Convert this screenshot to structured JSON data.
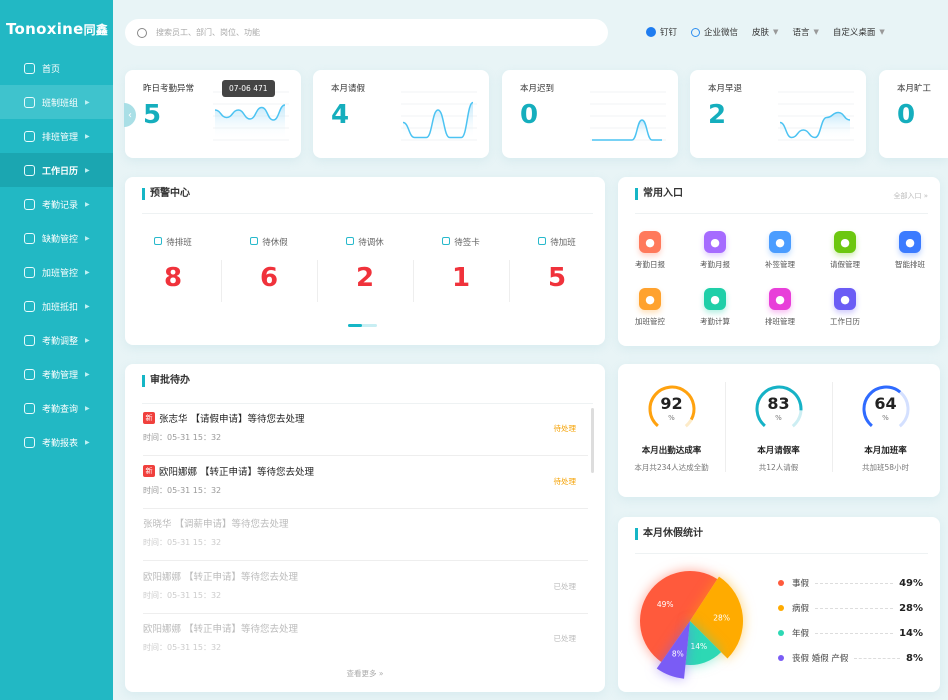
{
  "brand": {
    "name": "Tonoxine",
    "cn": "同鑫"
  },
  "sidebar": {
    "items": [
      {
        "label": "首页",
        "icon": "home-icon",
        "arrow": false
      },
      {
        "label": "班制班组",
        "icon": "org-icon",
        "arrow": true
      },
      {
        "label": "排班管理",
        "icon": "schedule-icon",
        "arrow": true
      },
      {
        "label": "工作日历",
        "icon": "calendar-icon",
        "arrow": true
      },
      {
        "label": "考勤记录",
        "icon": "record-icon",
        "arrow": true
      },
      {
        "label": "缺勤管控",
        "icon": "absence-icon",
        "arrow": true
      },
      {
        "label": "加班管控",
        "icon": "overtime-icon",
        "arrow": true
      },
      {
        "label": "加班抵扣",
        "icon": "deduct-icon",
        "arrow": true
      },
      {
        "label": "考勤调整",
        "icon": "adjust-icon",
        "arrow": true
      },
      {
        "label": "考勤管理",
        "icon": "user-icon",
        "arrow": true
      },
      {
        "label": "考勤查询",
        "icon": "query-icon",
        "arrow": true
      },
      {
        "label": "考勤报表",
        "icon": "report-icon",
        "arrow": true
      }
    ],
    "active": "工作日历",
    "hover": "班制班组"
  },
  "search": {
    "placeholder": "搜索员工、部门、岗位、功能"
  },
  "toplinks": {
    "dingtalk": "钉钉",
    "wecom": "企业微信",
    "skin": "皮肤",
    "language": "语言",
    "custom": "自定义桌面"
  },
  "stats": [
    {
      "label": "昨日考勤异常",
      "value": "5",
      "spark": [
        0.6,
        0.45,
        0.6,
        0.42,
        0.65,
        0.4,
        0.7
      ]
    },
    {
      "label": "本月请假",
      "value": "4",
      "spark": [
        0.35,
        0.05,
        0.05,
        0.6,
        0.05,
        0.05,
        0.75
      ]
    },
    {
      "label": "本月迟到",
      "value": "0",
      "spark": [
        0,
        0,
        0,
        0,
        0,
        0.4,
        0,
        0
      ]
    },
    {
      "label": "本月早退",
      "value": "2",
      "spark": [
        0.35,
        0.05,
        0.2,
        0.05,
        0.45,
        0.55,
        0.4
      ]
    },
    {
      "label": "本月旷工",
      "value": "0",
      "spark": []
    }
  ],
  "tooltip": {
    "date": "07-06",
    "value": "471"
  },
  "warning": {
    "title": "预警中心",
    "items": [
      {
        "label": "待排班",
        "value": "8"
      },
      {
        "label": "待休假",
        "value": "6"
      },
      {
        "label": "待调休",
        "value": "2"
      },
      {
        "label": "待签卡",
        "value": "1"
      },
      {
        "label": "待加班",
        "value": "5"
      }
    ]
  },
  "entries": {
    "title": "常用入口",
    "all": "全部入口 »",
    "items": [
      {
        "label": "考勤日报",
        "color": "#ff7a5c"
      },
      {
        "label": "考勤月报",
        "color": "#a66bff"
      },
      {
        "label": "补签管理",
        "color": "#4b9dff"
      },
      {
        "label": "请假管理",
        "color": "#6cc70f"
      },
      {
        "label": "智能排班",
        "color": "#3b7bff"
      },
      {
        "label": "加班管控",
        "color": "#ffa22e"
      },
      {
        "label": "考勤计算",
        "color": "#1fcfa8"
      },
      {
        "label": "排班管理",
        "color": "#e83fd9"
      },
      {
        "label": "工作日历",
        "color": "#6b5cf5"
      }
    ]
  },
  "approval": {
    "title": "审批待办",
    "more": "查看更多 »",
    "new_badge": "新",
    "items": [
      {
        "text": "张志华 【请假申请】等待您去处理",
        "time": "时间：05-31 15：32",
        "status": "待处理",
        "new": true
      },
      {
        "text": "欧阳娜娜 【转正申请】等待您去处理",
        "time": "时间：05-31 15：32",
        "status": "待处理",
        "new": true
      },
      {
        "text": "张晓华 【调薪申请】等待您去处理",
        "time": "时间：05-31 15：32",
        "status": "",
        "new": false
      },
      {
        "text": "欧阳娜娜 【转正申请】等待您去处理",
        "time": "时间：05-31 15：32",
        "status": "已处理",
        "new": false
      },
      {
        "text": "欧阳娜娜 【转正申请】等待您去处理",
        "time": "时间：05-31 15：32",
        "status": "已处理",
        "new": false
      }
    ]
  },
  "rates": [
    {
      "value": "92",
      "unit": "%",
      "title": "本月出勤达成率",
      "sub": "本月共234人达成全勤",
      "color": "#ffa20f",
      "track": "#fdebc8"
    },
    {
      "value": "83",
      "unit": "%",
      "title": "本月请假率",
      "sub": "共12人请假",
      "color": "#16b2c6",
      "track": "#cdeef3"
    },
    {
      "value": "64",
      "unit": "%",
      "title": "本月加班率",
      "sub": "共加班58小时",
      "color": "#2f6bff",
      "track": "#d4e0ff"
    }
  ],
  "chart_data": {
    "type": "pie",
    "title": "本月休假统计",
    "slices": [
      {
        "name": "事假",
        "value": 49,
        "label": "49%",
        "color": "#ff5a3c"
      },
      {
        "name": "病假",
        "value": 28,
        "label": "28%",
        "color": "#ffab00"
      },
      {
        "name": "年假",
        "value": 14,
        "label": "14%",
        "color": "#2dd8b4"
      },
      {
        "name": "丧假 婚假 产假",
        "value": 8,
        "label": "8%",
        "color": "#7a5cf5"
      }
    ]
  }
}
